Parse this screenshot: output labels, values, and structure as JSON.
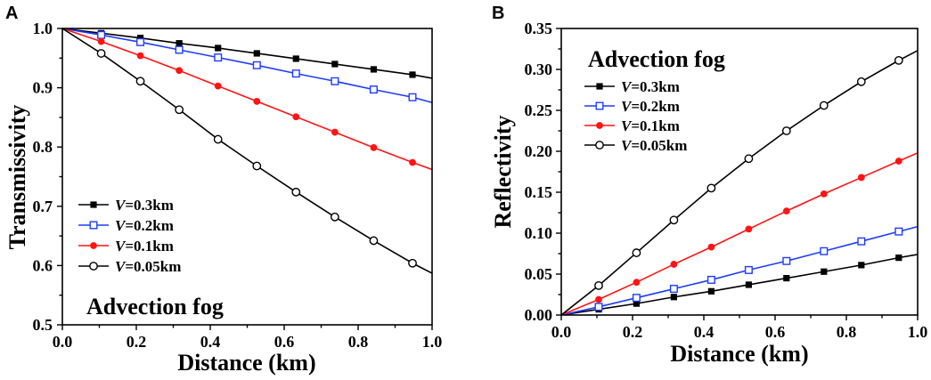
{
  "chart_data": [
    {
      "type": "line",
      "panel_label": "A",
      "xlabel": "Distance (km)",
      "ylabel": "Transmissivity",
      "annotation": "Advection fog",
      "legend_position": "lower-left",
      "xlim": [
        0.0,
        1.0
      ],
      "ylim": [
        0.5,
        1.0
      ],
      "xticks": [
        0.0,
        0.2,
        0.4,
        0.6,
        0.8,
        1.0
      ],
      "xtick_labels": [
        "0.0",
        "0.2",
        "0.4",
        "0.6",
        "0.8",
        "1.0"
      ],
      "yticks": [
        0.5,
        0.6,
        0.7,
        0.8,
        0.9,
        1.0
      ],
      "ytick_labels": [
        "0.5",
        "0.6",
        "0.7",
        "0.8",
        "0.9",
        "1.0"
      ],
      "x": [
        0.0,
        0.105,
        0.211,
        0.316,
        0.421,
        0.526,
        0.632,
        0.737,
        0.842,
        0.947,
        1.0
      ],
      "series": [
        {
          "name": "V=0.3km",
          "color": "#000000",
          "marker": "filled-square",
          "values": [
            1.0,
            0.992,
            0.984,
            0.975,
            0.967,
            0.958,
            0.949,
            0.94,
            0.931,
            0.922,
            0.916
          ]
        },
        {
          "name": "V=0.2km",
          "color": "#1e3cff",
          "marker": "open-square",
          "values": [
            1.0,
            0.989,
            0.977,
            0.964,
            0.951,
            0.938,
            0.924,
            0.911,
            0.897,
            0.884,
            0.875
          ]
        },
        {
          "name": "V=0.1km",
          "color": "#ff1414",
          "marker": "filled-circle",
          "values": [
            1.0,
            0.978,
            0.954,
            0.929,
            0.903,
            0.877,
            0.851,
            0.825,
            0.799,
            0.774,
            0.762
          ]
        },
        {
          "name": "V=0.05km",
          "color": "#000000",
          "marker": "open-circle",
          "values": [
            1.0,
            0.958,
            0.911,
            0.863,
            0.813,
            0.768,
            0.724,
            0.682,
            0.642,
            0.604,
            0.587
          ]
        }
      ]
    },
    {
      "type": "line",
      "panel_label": "B",
      "xlabel": "Distance (km)",
      "ylabel": "Reflectivity",
      "annotation": "Advection fog",
      "legend_position": "top-left",
      "xlim": [
        0.0,
        1.0
      ],
      "ylim": [
        0.0,
        0.35
      ],
      "xticks": [
        0.0,
        0.2,
        0.4,
        0.6,
        0.8,
        1.0
      ],
      "xtick_labels": [
        "0.0",
        "0.2",
        "0.4",
        "0.6",
        "0.8",
        "1.0"
      ],
      "yticks": [
        0.0,
        0.05,
        0.1,
        0.15,
        0.2,
        0.25,
        0.3,
        0.35
      ],
      "ytick_labels": [
        "0.00",
        "0.05",
        "0.10",
        "0.15",
        "0.20",
        "0.25",
        "0.30",
        "0.35"
      ],
      "x": [
        0.0,
        0.105,
        0.211,
        0.316,
        0.421,
        0.526,
        0.632,
        0.737,
        0.842,
        0.947,
        1.0
      ],
      "series": [
        {
          "name": "V=0.3km",
          "color": "#000000",
          "marker": "filled-square",
          "values": [
            0.0,
            0.007,
            0.014,
            0.022,
            0.029,
            0.037,
            0.045,
            0.053,
            0.061,
            0.07,
            0.074
          ]
        },
        {
          "name": "V=0.2km",
          "color": "#1e3cff",
          "marker": "open-square",
          "values": [
            0.0,
            0.01,
            0.021,
            0.032,
            0.043,
            0.055,
            0.066,
            0.078,
            0.09,
            0.102,
            0.108
          ]
        },
        {
          "name": "V=0.1km",
          "color": "#ff1414",
          "marker": "filled-circle",
          "values": [
            0.0,
            0.019,
            0.04,
            0.062,
            0.083,
            0.105,
            0.127,
            0.148,
            0.168,
            0.188,
            0.198
          ]
        },
        {
          "name": "V=0.05km",
          "color": "#000000",
          "marker": "open-circle",
          "values": [
            0.0,
            0.036,
            0.076,
            0.116,
            0.155,
            0.191,
            0.225,
            0.256,
            0.285,
            0.311,
            0.323
          ]
        }
      ]
    }
  ]
}
